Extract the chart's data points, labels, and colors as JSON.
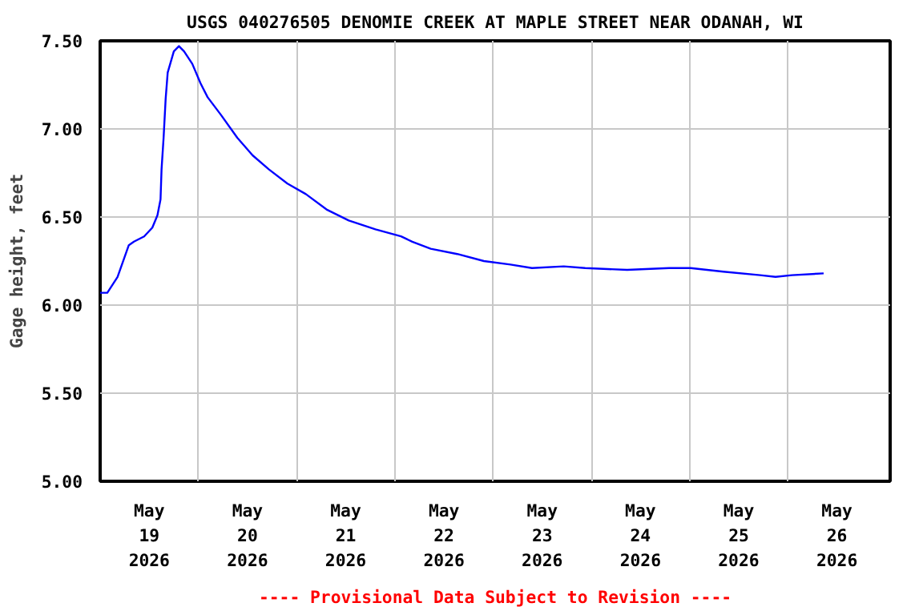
{
  "chart_data": {
    "type": "line",
    "title": "USGS 040276505 DENOMIE CREEK AT MAPLE STREET NEAR ODANAH, WI",
    "ylabel": "Gage height, feet",
    "annotations": [
      "---- Provisional Data Subject to Revision ----"
    ],
    "x": [
      "2026-05-19T00:00",
      "2026-05-19T01:45",
      "2026-05-19T04:15",
      "2026-05-19T07:00",
      "2026-05-19T08:15",
      "2026-05-19T10:45",
      "2026-05-19T12:45",
      "2026-05-19T14:00",
      "2026-05-19T14:45",
      "2026-05-19T15:00",
      "2026-05-19T15:30",
      "2026-05-19T16:00",
      "2026-05-19T16:30",
      "2026-05-19T18:00",
      "2026-05-19T19:15",
      "2026-05-19T20:30",
      "2026-05-19T22:30",
      "2026-05-20T00:30",
      "2026-05-20T02:15",
      "2026-05-20T05:30",
      "2026-05-20T09:30",
      "2026-05-20T13:15",
      "2026-05-20T17:15",
      "2026-05-20T21:45",
      "2026-05-21T02:15",
      "2026-05-21T07:30",
      "2026-05-21T12:45",
      "2026-05-21T19:15",
      "2026-05-22T01:30",
      "2026-05-22T04:15",
      "2026-05-22T08:45",
      "2026-05-22T15:15",
      "2026-05-22T21:45",
      "2026-05-23T04:15",
      "2026-05-23T09:30",
      "2026-05-23T17:15",
      "2026-05-23T22:30",
      "2026-05-24T08:45",
      "2026-05-24T19:00",
      "2026-05-25T00:15",
      "2026-05-25T08:15",
      "2026-05-25T17:15",
      "2026-05-25T21:00",
      "2026-05-26T01:00",
      "2026-05-26T08:45"
    ],
    "series": [
      {
        "color": "#0000ff",
        "values": [
          6.07,
          6.07,
          6.16,
          6.34,
          6.36,
          6.39,
          6.44,
          6.51,
          6.6,
          6.77,
          6.95,
          7.17,
          7.32,
          7.44,
          7.47,
          7.44,
          7.37,
          7.26,
          7.18,
          7.08,
          6.95,
          6.85,
          6.77,
          6.69,
          6.63,
          6.54,
          6.48,
          6.43,
          6.39,
          6.36,
          6.32,
          6.29,
          6.25,
          6.23,
          6.21,
          6.22,
          6.21,
          6.2,
          6.21,
          6.21,
          6.19,
          6.17,
          6.16,
          6.17,
          6.18
        ]
      }
    ],
    "xlim": [
      "2026-05-19T00:00",
      "2026-05-27T01:00"
    ],
    "xticks": [
      {
        "value": "2026-05-19T12:00",
        "label": "May\n19\n2026"
      },
      {
        "value": "2026-05-20T00:00",
        "label": null
      },
      {
        "value": "2026-05-20T12:00",
        "label": "May\n20\n2026"
      },
      {
        "value": "2026-05-21T00:00",
        "label": null
      },
      {
        "value": "2026-05-21T12:00",
        "label": "May\n21\n2026"
      },
      {
        "value": "2026-05-22T00:00",
        "label": null
      },
      {
        "value": "2026-05-22T12:00",
        "label": "May\n22\n2026"
      },
      {
        "value": "2026-05-23T00:00",
        "label": null
      },
      {
        "value": "2026-05-23T12:00",
        "label": "May\n23\n2026"
      },
      {
        "value": "2026-05-24T00:00",
        "label": null
      },
      {
        "value": "2026-05-24T12:00",
        "label": "May\n24\n2026"
      },
      {
        "value": "2026-05-25T00:00",
        "label": null
      },
      {
        "value": "2026-05-25T12:00",
        "label": "May\n25\n2026"
      },
      {
        "value": "2026-05-26T00:00",
        "label": null
      },
      {
        "value": "2026-05-26T12:00",
        "label": "May\n26\n2026"
      }
    ],
    "ylim": [
      5.0,
      7.5
    ],
    "yticks": [
      {
        "value": 5.0,
        "label": "5.00"
      },
      {
        "value": 5.5,
        "label": "5.50"
      },
      {
        "value": 6.0,
        "label": "6.00"
      },
      {
        "value": 6.5,
        "label": "6.50"
      },
      {
        "value": 7.0,
        "label": "7.00"
      },
      {
        "value": 7.5,
        "label": "7.50"
      }
    ],
    "grid": true,
    "marker": "none",
    "line_style": "solid"
  }
}
